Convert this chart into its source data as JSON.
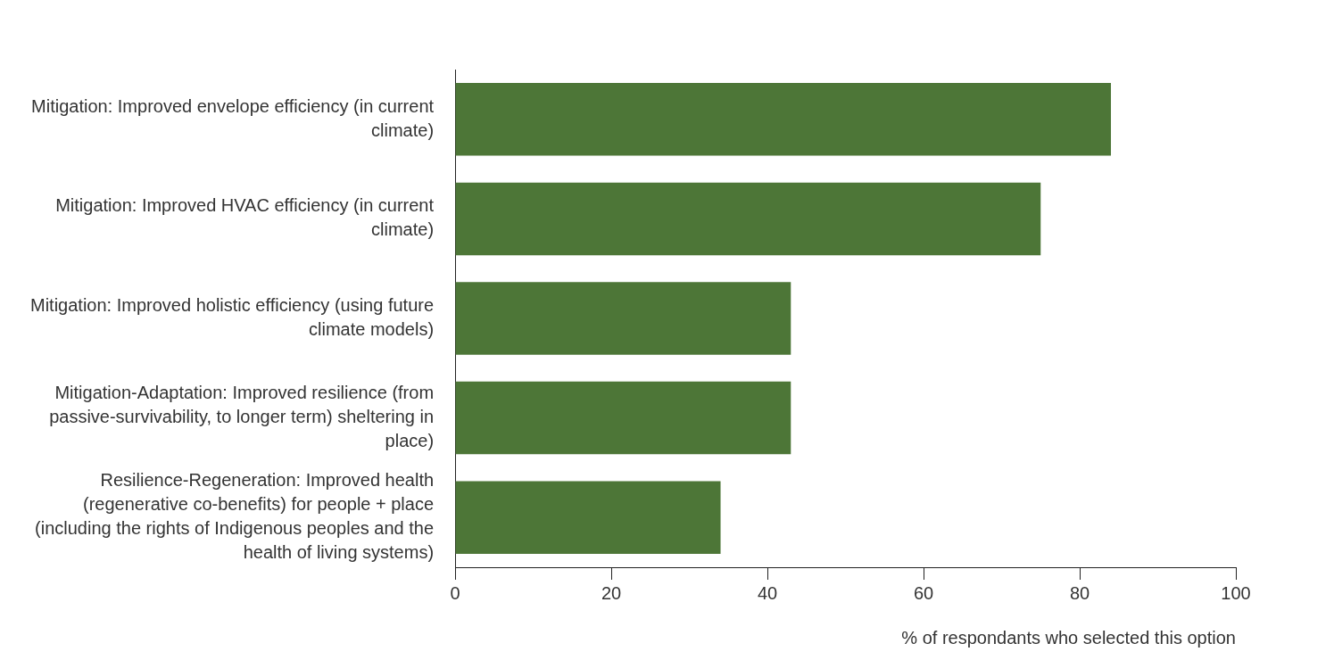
{
  "chart_data": {
    "type": "bar",
    "orientation": "horizontal",
    "categories": [
      "Mitigation: Improved envelope efficiency (in current climate)",
      "Mitigation: Improved HVAC efficiency (in current climate)",
      "Mitigation: Improved holistic efficiency (using future climate models)",
      "Mitigation-Adaptation: Improved resilience (from passive-survivability, to longer term) sheltering in place)",
      "Resilience-Regeneration: Improved health (regenerative co-benefits) for people + place (including the rights of Indigenous peoples and the health of living systems)"
    ],
    "values": [
      84,
      75,
      43,
      43,
      34
    ],
    "color": "#4d7637",
    "xlabel": "% of respondants who selected this option",
    "xlim": [
      0,
      100
    ],
    "xticks": [
      0,
      20,
      40,
      60,
      80,
      100
    ],
    "grid": false,
    "legend": false
  }
}
